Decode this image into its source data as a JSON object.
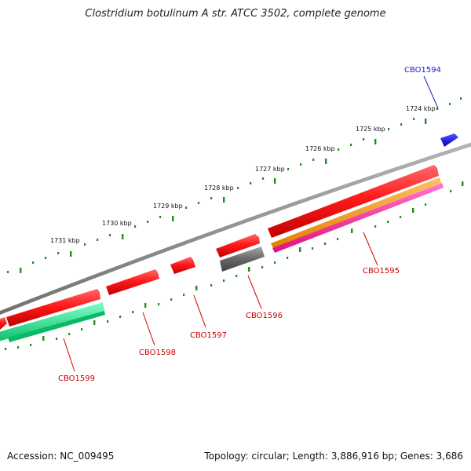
{
  "title": "Clostridium botulinum A str. ATCC 3502, complete genome",
  "footer": {
    "accession": "Accession: NC_009495",
    "topology": "Topology: circular; Length: 3,886,916 bp; Genes: 3,686"
  },
  "ticks": [
    {
      "label": "1724 kbp"
    },
    {
      "label": "1725 kbp"
    },
    {
      "label": "1726 kbp"
    },
    {
      "label": "1727 kbp"
    },
    {
      "label": "1728 kbp"
    },
    {
      "label": "1729 kbp"
    },
    {
      "label": "1730 kbp"
    },
    {
      "label": "1731 kbp"
    }
  ],
  "genes": [
    {
      "label": "CBO1594",
      "color": "#0000cc",
      "label_color": "#1a1acc"
    },
    {
      "label": "CBO1595",
      "color": "#ee0000",
      "label_color": "#cc0000"
    },
    {
      "label": "CBO1596",
      "color": "#ee0000",
      "label_color": "#cc0000"
    },
    {
      "label": "CBO1597",
      "color": "#ee0000",
      "label_color": "#cc0000"
    },
    {
      "label": "CBO1598",
      "color": "#ee0000",
      "label_color": "#cc0000"
    },
    {
      "label": "CBO1599",
      "color": "#ee0000",
      "label_color": "#cc0000"
    }
  ],
  "feature_colors": {
    "backbone": "#8a8a8a",
    "tick": "#228b22",
    "cds_forward": "#ee0000",
    "cds_reverse": "#ee0000",
    "orange_band": "#ff9900",
    "magenta_band": "#ff3399",
    "gray_band": "#666666",
    "teal_band": "#22ee99"
  }
}
